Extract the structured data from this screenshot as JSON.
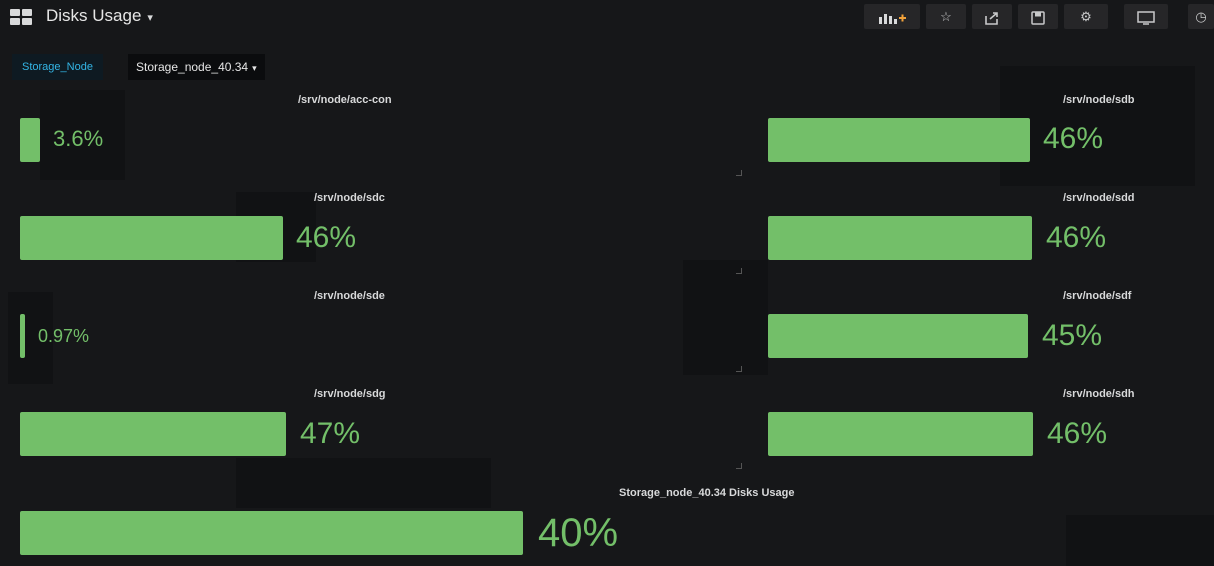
{
  "header": {
    "title": "Disks Usage",
    "title_caret": "▾",
    "toolbar": [
      {
        "icon": "add-panel-icon",
        "glyph": "📊+"
      },
      {
        "icon": "star-icon",
        "glyph": "☆"
      },
      {
        "icon": "share-icon",
        "glyph": "↗"
      },
      {
        "icon": "save-icon",
        "glyph": "💾"
      },
      {
        "icon": "gear-icon",
        "glyph": "⚙"
      },
      {
        "icon": "tv-icon",
        "glyph": "▭"
      },
      {
        "icon": "clock-icon",
        "glyph": "◷"
      }
    ]
  },
  "variable": {
    "label": "Storage_Node",
    "value": "Storage_node_40.34",
    "caret": "▾"
  },
  "colors": {
    "background": "#161719",
    "bar": "#73bf69",
    "variable_label": "#33b5e5"
  },
  "panels": [
    {
      "title": "/srv/node/acc-con",
      "value_text": "3.6%",
      "value": 3.6
    },
    {
      "title": "/srv/node/sdb",
      "value_text": "46%",
      "value": 46
    },
    {
      "title": "/srv/node/sdc",
      "value_text": "46%",
      "value": 46
    },
    {
      "title": "/srv/node/sdd",
      "value_text": "46%",
      "value": 46
    },
    {
      "title": "/srv/node/sde",
      "value_text": "0.97%",
      "value": 0.97
    },
    {
      "title": "/srv/node/sdf",
      "value_text": "45%",
      "value": 45
    },
    {
      "title": "/srv/node/sdg",
      "value_text": "47%",
      "value": 47
    },
    {
      "title": "/srv/node/sdh",
      "value_text": "46%",
      "value": 46
    },
    {
      "title": "Storage_node_40.34 Disks Usage",
      "value_text": "40%",
      "value": 40
    }
  ]
}
